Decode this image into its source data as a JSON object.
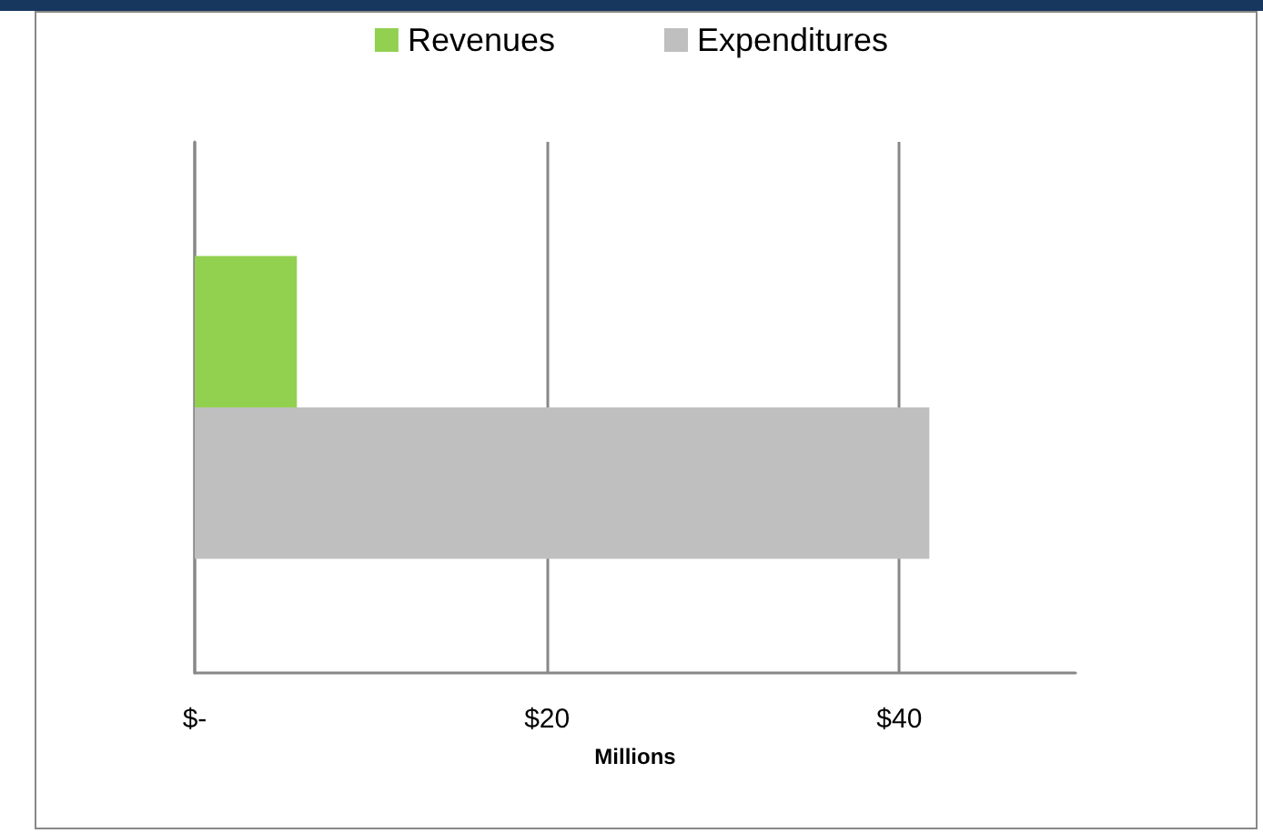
{
  "chart_data": {
    "type": "bar",
    "orientation": "horizontal",
    "categories": [
      null
    ],
    "xlabel": "Millions",
    "series": [
      {
        "name": "Revenues",
        "color": "#92d050",
        "values": [
          5.8
        ]
      },
      {
        "name": "Expenditures",
        "color": "#bfbfbf",
        "values": [
          41.7
        ]
      }
    ],
    "xlim": [
      0,
      50
    ],
    "xticks": [
      {
        "value": 0,
        "label": "$-"
      },
      {
        "value": 20,
        "label": "$20"
      },
      {
        "value": 40,
        "label": "$40"
      }
    ],
    "grid": "x",
    "legend": "top"
  }
}
